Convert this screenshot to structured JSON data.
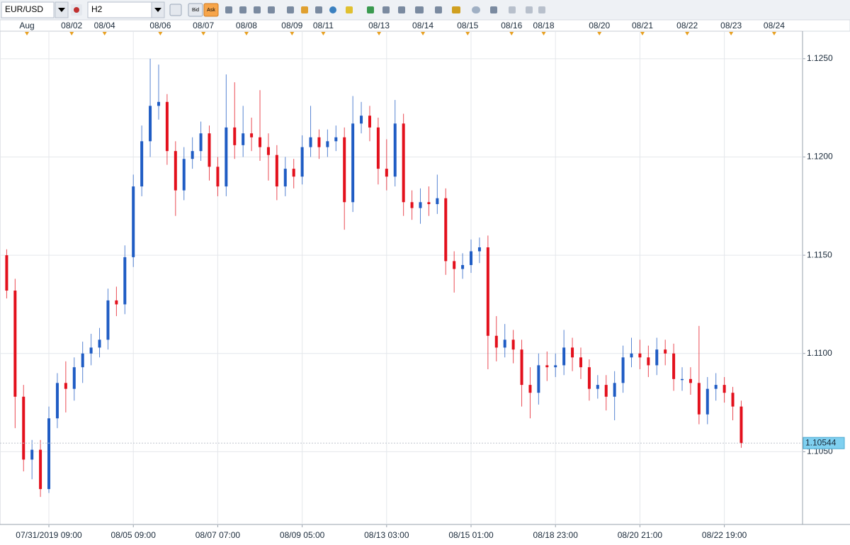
{
  "chart_data": {
    "type": "candlestick",
    "symbol": "EUR/USD",
    "timeframe": "H2",
    "bid_button": "Bid",
    "ask_button": "Ask",
    "up_color": "#1f5cc4",
    "down_color": "#e3101c",
    "grid": true,
    "ylim": [
      1.1013,
      1.1264
    ],
    "yticks": [
      {
        "value": 1.105,
        "label": "1.1050"
      },
      {
        "value": 1.11,
        "label": "1.1100"
      },
      {
        "value": 1.115,
        "label": "1.1150"
      },
      {
        "value": 1.12,
        "label": "1.1200"
      },
      {
        "value": 1.125,
        "label": "1.1250"
      }
    ],
    "xlim": [
      -0.79,
      94.26
    ],
    "xticks": [
      {
        "value": 5,
        "label": "07/31/2019 09:00"
      },
      {
        "value": 15,
        "label": "08/05 09:00"
      },
      {
        "value": 25,
        "label": "08/07 07:00"
      },
      {
        "value": 35,
        "label": "08/09 05:00"
      },
      {
        "value": 45,
        "label": "08/13 03:00"
      },
      {
        "value": 55,
        "label": "08/15 01:00"
      },
      {
        "value": 65,
        "label": "08/18 23:00"
      },
      {
        "value": 75,
        "label": "08/20 21:00"
      },
      {
        "value": 85,
        "label": "08/22 19:00"
      }
    ],
    "date_ticks": [
      {
        "value": 2.4,
        "label": "Aug"
      },
      {
        "value": 7.7,
        "label": "08/02"
      },
      {
        "value": 11.6,
        "label": "08/04"
      },
      {
        "value": 18.2,
        "label": "08/06"
      },
      {
        "value": 23.3,
        "label": "08/07"
      },
      {
        "value": 28.4,
        "label": "08/08"
      },
      {
        "value": 33.8,
        "label": "08/09"
      },
      {
        "value": 37.5,
        "label": "08/11"
      },
      {
        "value": 44.1,
        "label": "08/13"
      },
      {
        "value": 49.3,
        "label": "08/14"
      },
      {
        "value": 54.6,
        "label": "08/15"
      },
      {
        "value": 59.8,
        "label": "08/16"
      },
      {
        "value": 63.6,
        "label": "08/18"
      },
      {
        "value": 70.2,
        "label": "08/20"
      },
      {
        "value": 75.3,
        "label": "08/21"
      },
      {
        "value": 80.6,
        "label": "08/22"
      },
      {
        "value": 85.8,
        "label": "08/23"
      },
      {
        "value": 90.9,
        "label": "08/24"
      }
    ],
    "last_price": 1.10544,
    "open": [
      1.115,
      1.1132,
      1.1078,
      1.1046,
      1.1051,
      1.1031,
      1.1067,
      1.1085,
      1.1082,
      1.1093,
      1.11,
      1.1103,
      1.1107,
      1.1127,
      1.1125,
      1.1149,
      1.1185,
      1.1208,
      1.1226,
      1.1228,
      1.1203,
      1.1183,
      1.1199,
      1.1203,
      1.1212,
      1.1195,
      1.1185,
      1.1215,
      1.1206,
      1.1212,
      1.121,
      1.1205,
      1.1201,
      1.1185,
      1.1194,
      1.119,
      1.1205,
      1.121,
      1.1205,
      1.1208,
      1.121,
      1.1177,
      1.1217,
      1.1221,
      1.1215,
      1.1194,
      1.119,
      1.1217,
      1.1177,
      1.1174,
      1.1177,
      1.1176,
      1.1179,
      1.1147,
      1.1143,
      1.1145,
      1.1152,
      1.1154,
      1.1109,
      1.1103,
      1.1107,
      1.1102,
      1.1084,
      1.108,
      1.1094,
      1.1093,
      1.1094,
      1.1103,
      1.1098,
      1.1093,
      1.1082,
      1.1084,
      1.1078,
      1.1085,
      1.1098,
      1.11,
      1.1098,
      1.1094,
      1.1102,
      1.11,
      1.1087,
      1.1087,
      1.1085,
      1.1069,
      1.1082,
      1.1084,
      1.108,
      1.1073
    ],
    "high": [
      1.1153,
      1.1138,
      1.1084,
      1.1056,
      1.1056,
      1.1073,
      1.109,
      1.1096,
      1.1098,
      1.1106,
      1.111,
      1.1113,
      1.1133,
      1.1134,
      1.1155,
      1.1191,
      1.1216,
      1.125,
      1.1247,
      1.1232,
      1.1208,
      1.1205,
      1.121,
      1.1218,
      1.1216,
      1.12,
      1.1242,
      1.1238,
      1.1226,
      1.122,
      1.1234,
      1.1212,
      1.1206,
      1.12,
      1.1199,
      1.1211,
      1.1226,
      1.1214,
      1.1214,
      1.1216,
      1.1215,
      1.1231,
      1.1228,
      1.1226,
      1.122,
      1.1209,
      1.1229,
      1.1222,
      1.1183,
      1.1184,
      1.1185,
      1.1191,
      1.1184,
      1.1152,
      1.1151,
      1.1158,
      1.1159,
      1.116,
      1.1119,
      1.1115,
      1.1112,
      1.1107,
      1.1093,
      1.11,
      1.1101,
      1.11,
      1.1112,
      1.1108,
      1.1103,
      1.1097,
      1.1089,
      1.1089,
      1.1091,
      1.1104,
      1.1108,
      1.1107,
      1.1104,
      1.1108,
      1.1107,
      1.1105,
      1.1093,
      1.1093,
      1.1114,
      1.1088,
      1.109,
      1.1088,
      1.1083,
      1.1076
    ],
    "low": [
      1.1128,
      1.1062,
      1.104,
      1.1036,
      1.1027,
      1.1029,
      1.1062,
      1.107,
      1.1076,
      1.1085,
      1.1094,
      1.1098,
      1.1102,
      1.1119,
      1.112,
      1.1144,
      1.118,
      1.12,
      1.1219,
      1.1196,
      1.117,
      1.1178,
      1.1194,
      1.1198,
      1.1188,
      1.118,
      1.118,
      1.1199,
      1.12,
      1.1203,
      1.1198,
      1.1188,
      1.1178,
      1.118,
      1.1184,
      1.1186,
      1.12,
      1.1199,
      1.12,
      1.1203,
      1.1163,
      1.1172,
      1.1212,
      1.1208,
      1.1186,
      1.1183,
      1.1185,
      1.117,
      1.1168,
      1.1166,
      1.117,
      1.1171,
      1.114,
      1.1131,
      1.1138,
      1.1141,
      1.1146,
      1.1092,
      1.1096,
      1.1098,
      1.1095,
      1.1073,
      1.1067,
      1.1074,
      1.1086,
      1.1088,
      1.1089,
      1.1091,
      1.1087,
      1.1076,
      1.1077,
      1.1071,
      1.1066,
      1.108,
      1.1093,
      1.1092,
      1.1088,
      1.1089,
      1.1094,
      1.1081,
      1.1081,
      1.1079,
      1.1064,
      1.1064,
      1.1076,
      1.1075,
      1.1066,
      1.1052
    ],
    "close": [
      1.1132,
      1.1078,
      1.1046,
      1.1051,
      1.1031,
      1.1067,
      1.1085,
      1.1082,
      1.1093,
      1.11,
      1.1103,
      1.1107,
      1.1127,
      1.1125,
      1.1149,
      1.1185,
      1.1208,
      1.1226,
      1.1228,
      1.1203,
      1.1183,
      1.1199,
      1.1203,
      1.1212,
      1.1195,
      1.1185,
      1.1215,
      1.1206,
      1.1212,
      1.121,
      1.1205,
      1.1201,
      1.1185,
      1.1194,
      1.119,
      1.1205,
      1.121,
      1.1205,
      1.1208,
      1.121,
      1.1177,
      1.1217,
      1.1221,
      1.1215,
      1.1194,
      1.119,
      1.1217,
      1.1177,
      1.1174,
      1.1177,
      1.1176,
      1.1179,
      1.1147,
      1.1143,
      1.1145,
      1.1152,
      1.1154,
      1.1109,
      1.1103,
      1.1107,
      1.1102,
      1.1084,
      1.108,
      1.1094,
      1.1093,
      1.1094,
      1.1103,
      1.1098,
      1.1093,
      1.1082,
      1.1084,
      1.1078,
      1.1085,
      1.1098,
      1.11,
      1.1098,
      1.1094,
      1.1102,
      1.11,
      1.1087,
      1.1087,
      1.1085,
      1.1069,
      1.1082,
      1.1084,
      1.108,
      1.1073,
      1.10544
    ]
  }
}
